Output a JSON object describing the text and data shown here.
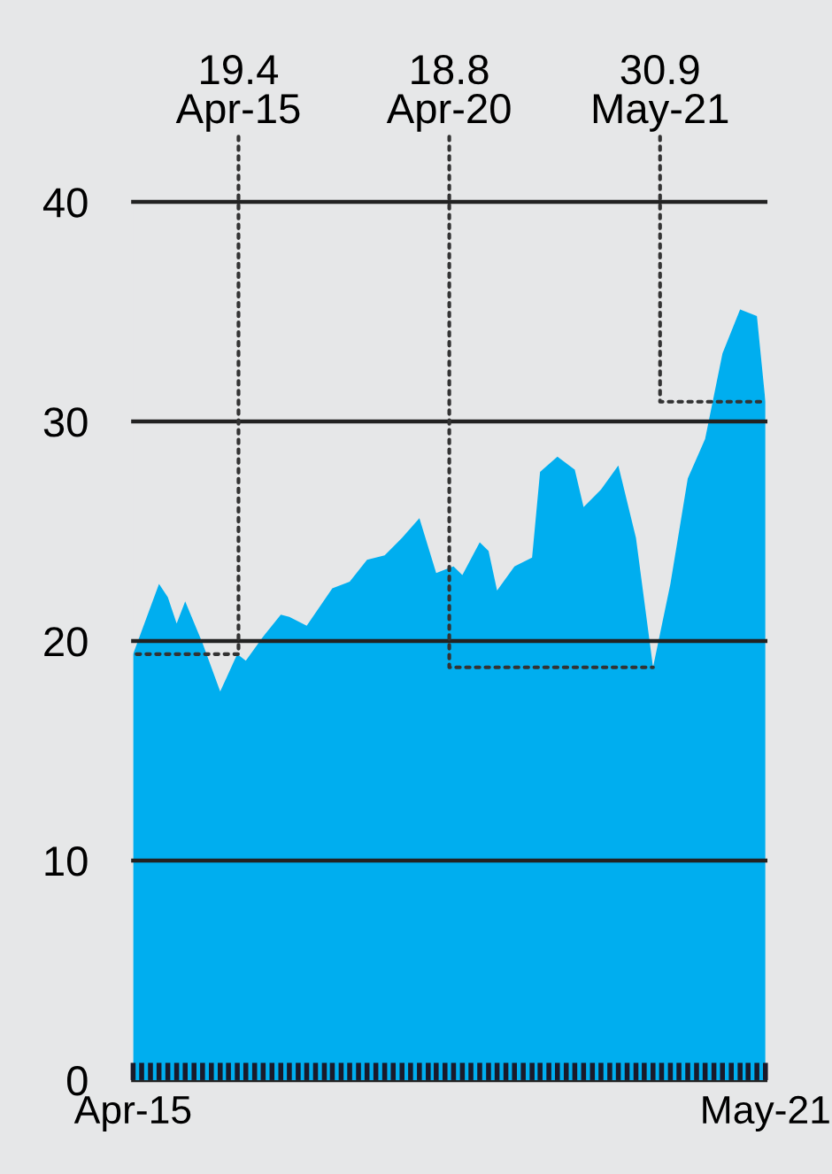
{
  "chart_data": {
    "type": "area",
    "x": [
      "2015-04",
      "2015-07",
      "2015-08",
      "2015-09",
      "2015-10",
      "2015-12",
      "2016-02",
      "2016-04",
      "2016-05",
      "2016-07",
      "2016-09",
      "2016-10",
      "2016-12",
      "2017-03",
      "2017-05",
      "2017-07",
      "2017-09",
      "2017-11",
      "2018-01",
      "2018-03",
      "2018-05",
      "2018-06",
      "2018-08",
      "2018-09",
      "2018-10",
      "2018-12",
      "2019-02",
      "2019-03",
      "2019-05",
      "2019-07",
      "2019-08",
      "2019-10",
      "2019-12",
      "2020-02",
      "2020-04",
      "2020-06",
      "2020-08",
      "2020-10",
      "2020-12",
      "2021-02",
      "2021-04",
      "2021-05"
    ],
    "series": [
      {
        "color": "#00aeef",
        "values": [
          19.4,
          22.6,
          22.0,
          20.8,
          21.8,
          19.9,
          17.7,
          19.4,
          19.1,
          20.2,
          21.2,
          21.1,
          20.7,
          22.4,
          22.7,
          23.7,
          23.9,
          24.7,
          25.6,
          23.1,
          23.4,
          23.0,
          24.5,
          24.1,
          22.3,
          23.4,
          23.8,
          27.7,
          28.4,
          27.8,
          26.1,
          26.9,
          28.0,
          24.7,
          18.8,
          22.6,
          27.4,
          29.2,
          33.1,
          35.1,
          34.8,
          30.9
        ]
      }
    ],
    "xlim": [
      "2015-04",
      "2021-05"
    ],
    "xticks": [
      {
        "value": "2015-04",
        "label": "Apr-15"
      },
      {
        "value": "2021-05",
        "label": "May-21"
      }
    ],
    "ylim": [
      0,
      40
    ],
    "yticks": [
      0,
      10,
      20,
      30,
      40
    ],
    "grid": "y",
    "annotations": [
      {
        "text": "19.4\nApr-15",
        "x": "2015-04",
        "y": 19.4
      },
      {
        "text": "18.8\nApr-20",
        "x": "2020-04",
        "y": 18.8
      },
      {
        "text": "30.9\nMay-21",
        "x": "2021-05",
        "y": 30.9
      }
    ]
  }
}
